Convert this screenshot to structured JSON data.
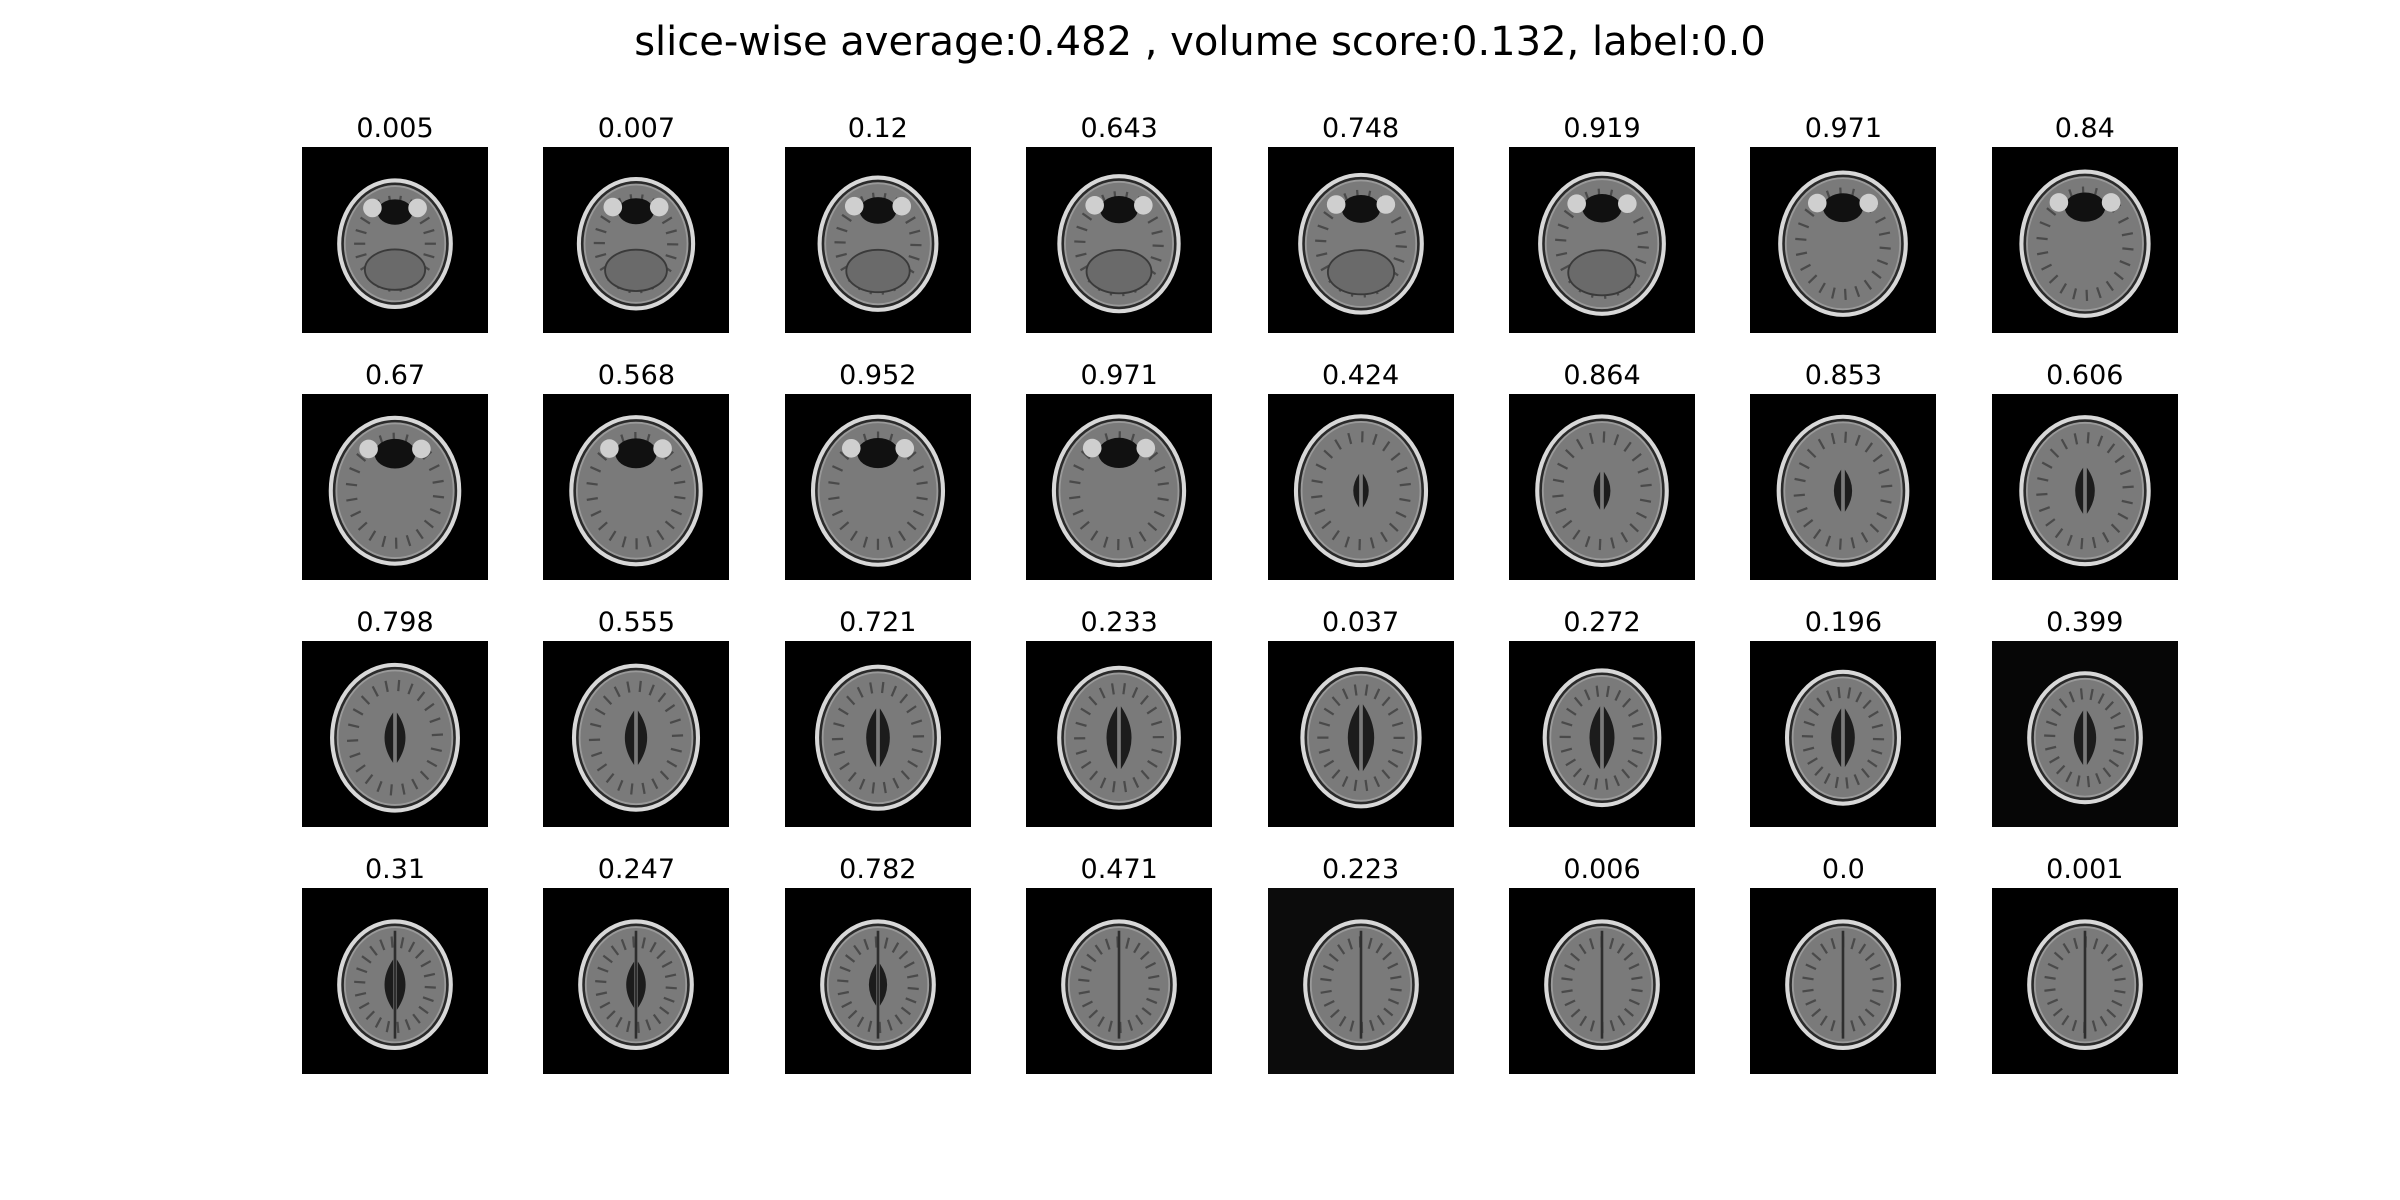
{
  "figure": {
    "suptitle": "slice-wise average:0.482 , volume score:0.132, label:0.0",
    "slice_scores": [
      "0.005",
      "0.007",
      "0.12",
      "0.643",
      "0.748",
      "0.919",
      "0.971",
      "0.84",
      "0.67",
      "0.568",
      "0.952",
      "0.971",
      "0.424",
      "0.864",
      "0.853",
      "0.606",
      "0.798",
      "0.555",
      "0.721",
      "0.233",
      "0.037",
      "0.272",
      "0.196",
      "0.399",
      "0.31",
      "0.247",
      "0.782",
      "0.471",
      "0.223",
      "0.006",
      "0.0",
      "0.001"
    ]
  }
}
